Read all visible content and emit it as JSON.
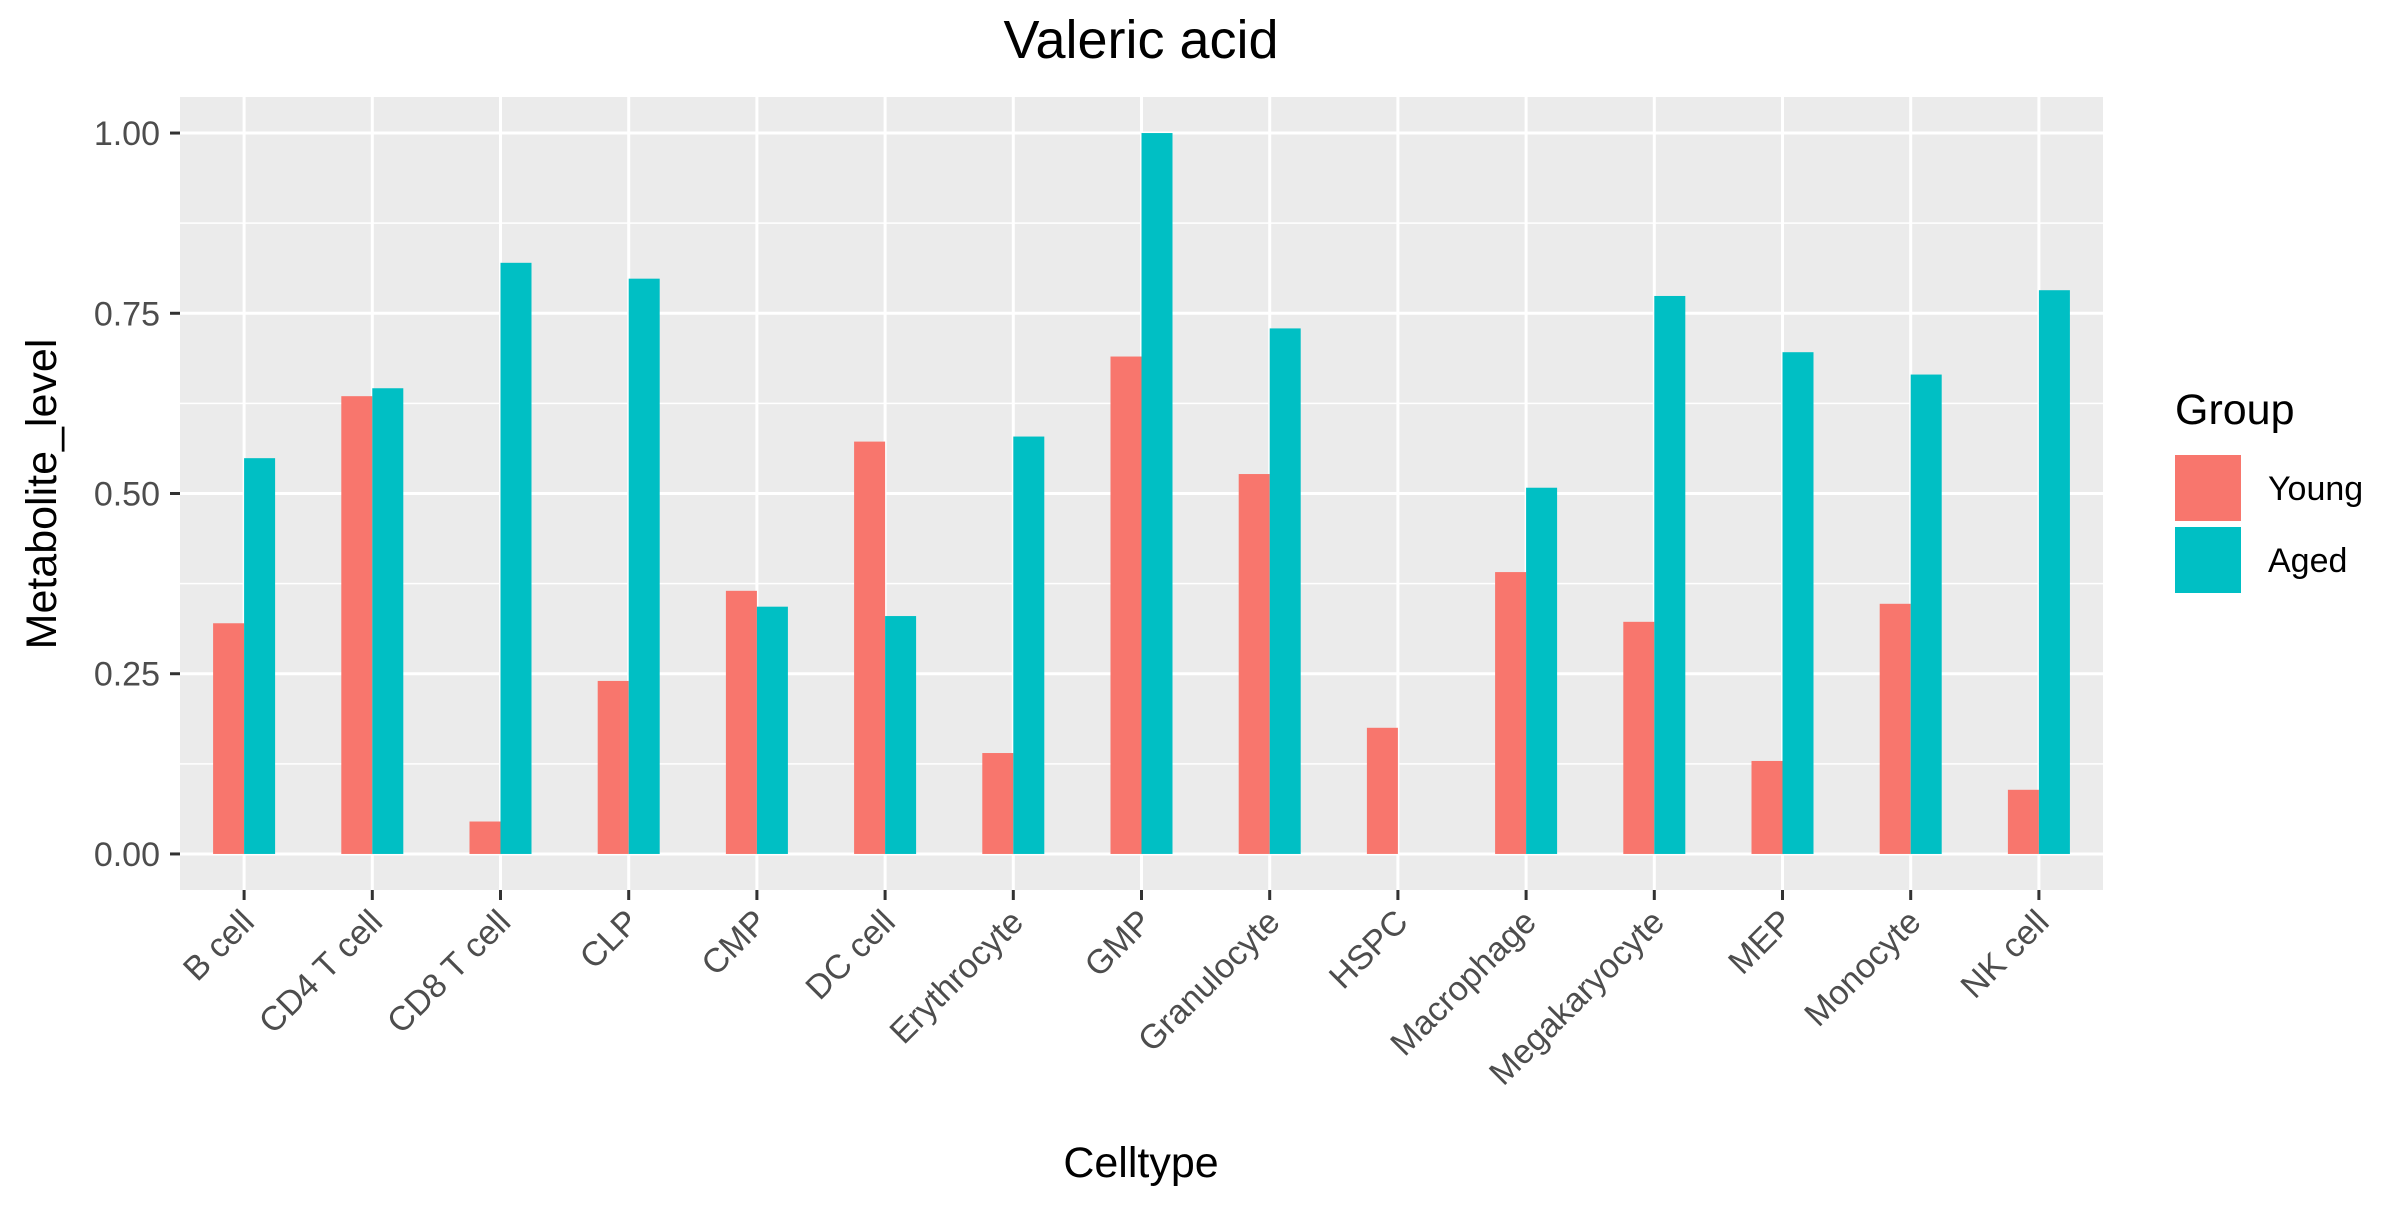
{
  "chart_data": {
    "type": "bar",
    "title": "Valeric acid",
    "xlabel": "Celltype",
    "ylabel": "Metabolite_level",
    "ylim": [
      -0.05,
      1.05
    ],
    "yticks": [
      0.0,
      0.25,
      0.5,
      0.75,
      1.0
    ],
    "ytick_labels": [
      "0.00",
      "0.25",
      "0.50",
      "0.75",
      "1.00"
    ],
    "grid": true,
    "legend_position": "right",
    "legend_title": "Group",
    "categories": [
      "B cell",
      "CD4 T cell",
      "CD8 T cell",
      "CLP",
      "CMP",
      "DC cell",
      "Erythrocyte",
      "GMP",
      "Granulocyte",
      "HSPC",
      "Macrophage",
      "Megakaryocyte",
      "MEP",
      "Monocyte",
      "NK cell"
    ],
    "series": [
      {
        "name": "Young",
        "color": "#F8766D",
        "values": [
          0.32,
          0.635,
          0.045,
          0.24,
          0.365,
          0.572,
          0.14,
          0.69,
          0.527,
          0.175,
          0.391,
          0.322,
          0.129,
          0.347,
          0.089
        ]
      },
      {
        "name": "Aged",
        "color": "#00BFC4",
        "values": [
          0.549,
          0.646,
          0.82,
          0.798,
          0.343,
          0.33,
          0.579,
          1.0,
          0.729,
          0.0,
          0.508,
          0.774,
          0.696,
          0.665,
          0.782
        ]
      }
    ]
  }
}
